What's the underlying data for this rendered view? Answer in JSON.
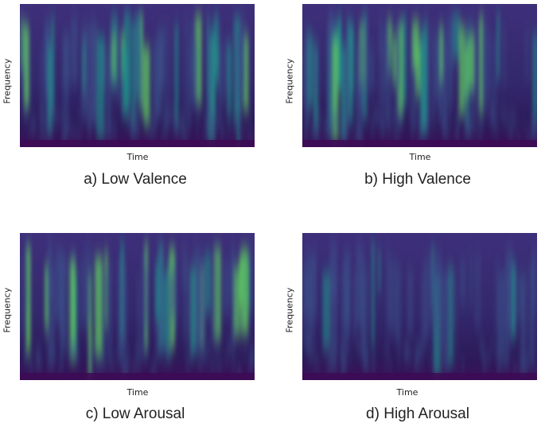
{
  "chart_data": [
    {
      "type": "heatmap",
      "caption": "a) Low Valence",
      "xlabel": "Time",
      "ylabel": "Frequency",
      "colormap": [
        "#440154",
        "#3b528b",
        "#21918c",
        "#5ec962",
        "#fde725"
      ],
      "intensity": "low-moderate, bright streaks in middle frequencies"
    },
    {
      "type": "heatmap",
      "caption": "b) High Valence",
      "xlabel": "Time",
      "ylabel": "Frequency",
      "colormap": [
        "#440154",
        "#3b528b",
        "#21918c",
        "#5ec962",
        "#fde725"
      ],
      "intensity": "moderate, many evenly spread streaks"
    },
    {
      "type": "heatmap",
      "caption": "c) Low Arousal",
      "xlabel": "Time",
      "ylabel": "Frequency",
      "colormap": [
        "#440154",
        "#3b528b",
        "#21918c",
        "#5ec962",
        "#fde725"
      ],
      "intensity": "moderate with a few bright vertical streaks"
    },
    {
      "type": "heatmap",
      "caption": "d) High Arousal",
      "xlabel": "Time",
      "ylabel": "Frequency",
      "colormap": [
        "#440154",
        "#3b528b",
        "#21918c",
        "#5ec962",
        "#fde725"
      ],
      "intensity": "low, dark with faint streaks"
    }
  ]
}
